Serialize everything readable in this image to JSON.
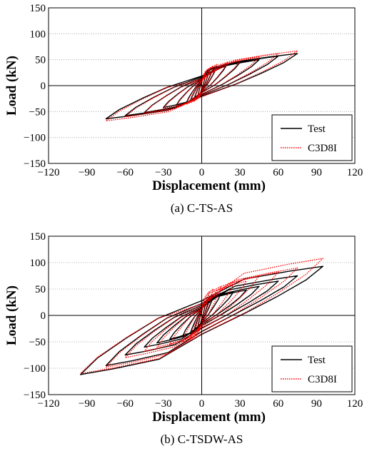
{
  "chart_data": [
    {
      "type": "line",
      "caption": "(a) C-TS-AS",
      "xlabel": "Displacement (mm)",
      "ylabel": "Load (kN)",
      "xlim": [
        -120,
        120
      ],
      "ylim": [
        -150,
        150
      ],
      "xticks": [
        -120,
        -90,
        -60,
        -30,
        0,
        30,
        60,
        90,
        120
      ],
      "yticks": [
        -150,
        -100,
        -50,
        0,
        50,
        100,
        150
      ],
      "grid": "horizontal dotted",
      "legend": "bottom-right",
      "series": [
        {
          "name": "Test",
          "color": "#000000",
          "style": "solid",
          "cycles": [
            {
              "amp": 3,
              "pmax": 22,
              "nmin": -20
            },
            {
              "amp": 6,
              "pmax": 30,
              "nmin": -27
            },
            {
              "amp": 9,
              "pmax": 35,
              "nmin": -30
            },
            {
              "amp": 12,
              "pmax": 38,
              "nmin": -33
            },
            {
              "amp": 20,
              "pmax": 42,
              "nmin": -38
            },
            {
              "amp": 30,
              "pmax": 45,
              "nmin": -42
            },
            {
              "amp": 45,
              "pmax": 50,
              "nmin": -52
            },
            {
              "amp": 60,
              "pmax": 57,
              "nmin": -58
            },
            {
              "amp": 75,
              "pmax": 62,
              "nmin": -64
            }
          ]
        },
        {
          "name": "C3D8I",
          "color": "#ff0000",
          "style": "dotted",
          "cycles": [
            {
              "amp": 3,
              "pmax": 25,
              "nmin": -23
            },
            {
              "amp": 6,
              "pmax": 34,
              "nmin": -30
            },
            {
              "amp": 9,
              "pmax": 38,
              "nmin": -33
            },
            {
              "amp": 12,
              "pmax": 41,
              "nmin": -36
            },
            {
              "amp": 20,
              "pmax": 45,
              "nmin": -40
            },
            {
              "amp": 30,
              "pmax": 48,
              "nmin": -44
            },
            {
              "amp": 45,
              "pmax": 55,
              "nmin": -53
            },
            {
              "amp": 60,
              "pmax": 62,
              "nmin": -60
            },
            {
              "amp": 75,
              "pmax": 67,
              "nmin": -68
            }
          ]
        }
      ]
    },
    {
      "type": "line",
      "caption": "(b) C-TSDW-AS",
      "xlabel": "Displacement (mm)",
      "ylabel": "Load (kN)",
      "xlim": [
        -120,
        120
      ],
      "ylim": [
        -150,
        150
      ],
      "xticks": [
        -120,
        -90,
        -60,
        -30,
        0,
        30,
        60,
        90,
        120
      ],
      "yticks": [
        -150,
        -100,
        -50,
        0,
        50,
        100,
        150
      ],
      "grid": "horizontal dotted",
      "legend": "bottom-right",
      "series": [
        {
          "name": "Test",
          "color": "#000000",
          "style": "solid",
          "cycles": [
            {
              "amp": 3,
              "pmax": 25,
              "nmin": -22
            },
            {
              "amp": 6,
              "pmax": 33,
              "nmin": -30
            },
            {
              "amp": 9,
              "pmax": 37,
              "nmin": -35
            },
            {
              "amp": 15,
              "pmax": 42,
              "nmin": -40
            },
            {
              "amp": 25,
              "pmax": 45,
              "nmin": -45
            },
            {
              "amp": 35,
              "pmax": 48,
              "nmin": -52
            },
            {
              "amp": 45,
              "pmax": 55,
              "nmin": -60
            },
            {
              "amp": 60,
              "pmax": 65,
              "nmin": -75
            },
            {
              "amp": 75,
              "pmax": 75,
              "nmin": -95
            },
            {
              "amp": 95,
              "pmax": 93,
              "nmin": -112
            }
          ]
        },
        {
          "name": "C3D8I",
          "color": "#ff0000",
          "style": "dotted",
          "cycles": [
            {
              "amp": 3,
              "pmax": 35,
              "nmin": -30
            },
            {
              "amp": 6,
              "pmax": 45,
              "nmin": -40
            },
            {
              "amp": 9,
              "pmax": 50,
              "nmin": -45
            },
            {
              "amp": 15,
              "pmax": 55,
              "nmin": -50
            },
            {
              "amp": 25,
              "pmax": 60,
              "nmin": -55
            },
            {
              "amp": 35,
              "pmax": 65,
              "nmin": -60
            },
            {
              "amp": 45,
              "pmax": 75,
              "nmin": -68
            },
            {
              "amp": 60,
              "pmax": 82,
              "nmin": -80
            },
            {
              "amp": 75,
              "pmax": 90,
              "nmin": -98
            },
            {
              "amp": 95,
              "pmax": 108,
              "nmin": -110
            }
          ]
        }
      ]
    }
  ]
}
